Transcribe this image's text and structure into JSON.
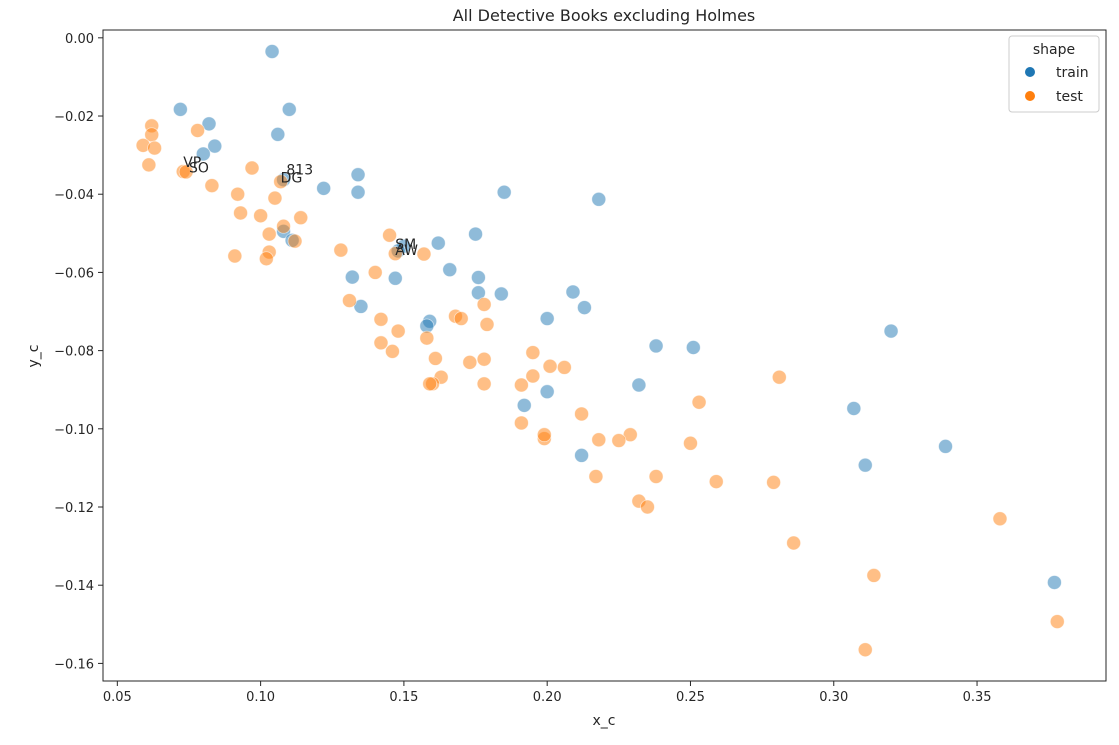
{
  "chart_data": {
    "type": "scatter",
    "title": "All Detective Books excluding Holmes",
    "xlabel": "x_c",
    "ylabel": "y_c",
    "xlim": [
      0.045,
      0.395
    ],
    "ylim": [
      -0.1645,
      0.002
    ],
    "xticks": [
      0.05,
      0.1,
      0.15,
      0.2,
      0.25,
      0.3,
      0.35
    ],
    "xtick_labels": [
      "0.05",
      "0.10",
      "0.15",
      "0.20",
      "0.25",
      "0.30",
      "0.35"
    ],
    "yticks": [
      0.0,
      -0.02,
      -0.04,
      -0.06,
      -0.08,
      -0.1,
      -0.12,
      -0.14,
      -0.16
    ],
    "ytick_labels": [
      "0.00",
      "−0.02",
      "−0.04",
      "−0.06",
      "−0.08",
      "−0.10",
      "−0.12",
      "−0.14",
      "−0.16"
    ],
    "grid": false,
    "legend": {
      "title": "shape",
      "placement": "top-right"
    },
    "series": [
      {
        "name": "train",
        "color": "#1f77b4",
        "points": [
          [
            0.104,
            -0.0035
          ],
          [
            0.072,
            -0.0183
          ],
          [
            0.11,
            -0.0183
          ],
          [
            0.082,
            -0.022
          ],
          [
            0.106,
            -0.0247
          ],
          [
            0.084,
            -0.0277
          ],
          [
            0.08,
            -0.0297
          ],
          [
            0.134,
            -0.035
          ],
          [
            0.108,
            -0.0363
          ],
          [
            0.134,
            -0.0395
          ],
          [
            0.122,
            -0.0385
          ],
          [
            0.185,
            -0.0395
          ],
          [
            0.218,
            -0.0413
          ],
          [
            0.108,
            -0.0495
          ],
          [
            0.111,
            -0.0518
          ],
          [
            0.175,
            -0.0502
          ],
          [
            0.162,
            -0.0525
          ],
          [
            0.15,
            -0.0533
          ],
          [
            0.148,
            -0.0545
          ],
          [
            0.166,
            -0.0593
          ],
          [
            0.176,
            -0.0613
          ],
          [
            0.132,
            -0.0612
          ],
          [
            0.147,
            -0.0615
          ],
          [
            0.176,
            -0.0652
          ],
          [
            0.184,
            -0.0655
          ],
          [
            0.209,
            -0.065
          ],
          [
            0.213,
            -0.069
          ],
          [
            0.135,
            -0.0687
          ],
          [
            0.159,
            -0.0725
          ],
          [
            0.2,
            -0.0718
          ],
          [
            0.158,
            -0.0737
          ],
          [
            0.32,
            -0.075
          ],
          [
            0.238,
            -0.0788
          ],
          [
            0.251,
            -0.0792
          ],
          [
            0.232,
            -0.0888
          ],
          [
            0.2,
            -0.0905
          ],
          [
            0.192,
            -0.094
          ],
          [
            0.307,
            -0.0948
          ],
          [
            0.339,
            -0.1045
          ],
          [
            0.212,
            -0.1068
          ],
          [
            0.311,
            -0.1093
          ],
          [
            0.377,
            -0.1393
          ]
        ]
      },
      {
        "name": "test",
        "color": "#ff7f0e",
        "points": [
          [
            0.062,
            -0.0225
          ],
          [
            0.062,
            -0.0248
          ],
          [
            0.078,
            -0.0237
          ],
          [
            0.059,
            -0.0275
          ],
          [
            0.063,
            -0.0282
          ],
          [
            0.061,
            -0.0325
          ],
          [
            0.073,
            -0.0342
          ],
          [
            0.074,
            -0.0343
          ],
          [
            0.097,
            -0.0333
          ],
          [
            0.107,
            -0.0368
          ],
          [
            0.083,
            -0.0378
          ],
          [
            0.092,
            -0.04
          ],
          [
            0.105,
            -0.041
          ],
          [
            0.093,
            -0.0448
          ],
          [
            0.1,
            -0.0455
          ],
          [
            0.114,
            -0.046
          ],
          [
            0.108,
            -0.0482
          ],
          [
            0.103,
            -0.0502
          ],
          [
            0.112,
            -0.052
          ],
          [
            0.145,
            -0.0505
          ],
          [
            0.128,
            -0.0543
          ],
          [
            0.103,
            -0.0548
          ],
          [
            0.147,
            -0.0552
          ],
          [
            0.157,
            -0.0553
          ],
          [
            0.102,
            -0.0565
          ],
          [
            0.091,
            -0.0558
          ],
          [
            0.14,
            -0.06
          ],
          [
            0.131,
            -0.0672
          ],
          [
            0.178,
            -0.0682
          ],
          [
            0.168,
            -0.0712
          ],
          [
            0.17,
            -0.0718
          ],
          [
            0.142,
            -0.072
          ],
          [
            0.179,
            -0.0733
          ],
          [
            0.148,
            -0.075
          ],
          [
            0.158,
            -0.0768
          ],
          [
            0.142,
            -0.078
          ],
          [
            0.146,
            -0.0802
          ],
          [
            0.195,
            -0.0805
          ],
          [
            0.161,
            -0.082
          ],
          [
            0.178,
            -0.0822
          ],
          [
            0.173,
            -0.083
          ],
          [
            0.201,
            -0.084
          ],
          [
            0.206,
            -0.0843
          ],
          [
            0.195,
            -0.0865
          ],
          [
            0.163,
            -0.0868
          ],
          [
            0.281,
            -0.0868
          ],
          [
            0.16,
            -0.0885
          ],
          [
            0.159,
            -0.0885
          ],
          [
            0.178,
            -0.0885
          ],
          [
            0.191,
            -0.0888
          ],
          [
            0.253,
            -0.0932
          ],
          [
            0.212,
            -0.0962
          ],
          [
            0.191,
            -0.0985
          ],
          [
            0.229,
            -0.1015
          ],
          [
            0.199,
            -0.1025
          ],
          [
            0.218,
            -0.1028
          ],
          [
            0.225,
            -0.103
          ],
          [
            0.25,
            -0.1037
          ],
          [
            0.217,
            -0.1122
          ],
          [
            0.238,
            -0.1122
          ],
          [
            0.259,
            -0.1135
          ],
          [
            0.279,
            -0.1137
          ],
          [
            0.232,
            -0.1185
          ],
          [
            0.235,
            -0.12
          ],
          [
            0.358,
            -0.123
          ],
          [
            0.286,
            -0.1292
          ],
          [
            0.314,
            -0.1375
          ],
          [
            0.378,
            -0.1493
          ],
          [
            0.311,
            -0.1565
          ],
          [
            0.199,
            -0.1015
          ]
        ]
      }
    ],
    "annotations": [
      {
        "text": "VP",
        "x": 0.073,
        "y": -0.033
      },
      {
        "text": "SO",
        "x": 0.075,
        "y": -0.0345
      },
      {
        "text": "813",
        "x": 0.109,
        "y": -0.035
      },
      {
        "text": "DG",
        "x": 0.107,
        "y": -0.037
      },
      {
        "text": "SM",
        "x": 0.147,
        "y": -0.054
      },
      {
        "text": "AW",
        "x": 0.147,
        "y": -0.0555
      }
    ]
  }
}
